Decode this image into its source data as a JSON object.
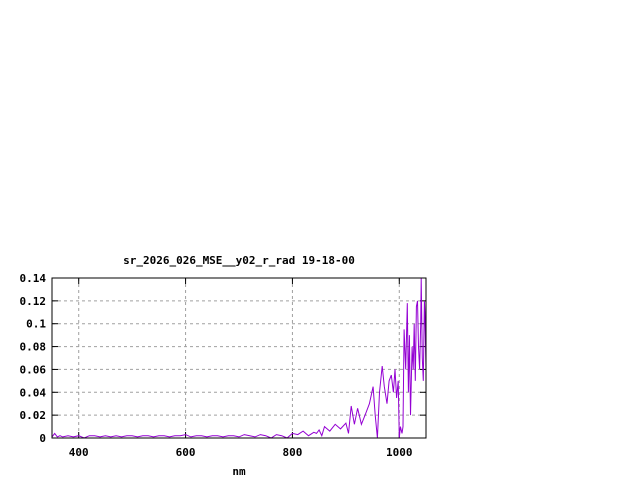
{
  "chart_data": {
    "type": "line",
    "title": "sr_2026_026_MSE__y02_r_rad 19-18-00",
    "xlabel": "nm",
    "ylabel": "",
    "xlim": [
      350,
      1050
    ],
    "ylim": [
      0,
      0.14
    ],
    "xticks": [
      400,
      600,
      800,
      1000
    ],
    "xtick_labels": [
      "400",
      "600",
      "800",
      "1000"
    ],
    "yticks": [
      0,
      0.02,
      0.04,
      0.06,
      0.08,
      0.1,
      0.12,
      0.14
    ],
    "ytick_labels": [
      "0",
      "0.02",
      "0.04",
      "0.06",
      "0.08",
      "0.1",
      "0.12",
      "0.14"
    ],
    "grid": true,
    "line_color": "#9400d3",
    "series": [
      {
        "x": [
          350,
          355,
          360,
          365,
          370,
          380,
          390,
          400,
          410,
          420,
          430,
          440,
          450,
          460,
          470,
          480,
          490,
          500,
          510,
          520,
          530,
          540,
          550,
          560,
          570,
          580,
          590,
          600,
          610,
          620,
          630,
          640,
          650,
          660,
          670,
          680,
          690,
          700,
          710,
          720,
          730,
          740,
          750,
          760,
          770,
          780,
          790,
          800,
          810,
          820,
          830,
          840,
          845,
          850,
          855,
          860,
          870,
          880,
          890,
          900,
          905,
          910,
          916,
          922,
          929,
          936,
          944,
          951,
          955,
          959,
          963,
          968,
          972,
          977,
          981,
          985,
          989,
          992,
          995,
          998,
          1000,
          1002,
          1005,
          1007,
          1009,
          1012,
          1015,
          1017,
          1019,
          1021,
          1024,
          1026,
          1028,
          1030,
          1032,
          1034,
          1036,
          1038,
          1040,
          1041,
          1043,
          1045,
          1047,
          1048,
          1050
        ],
        "y": [
          0.001,
          0.004,
          0.001,
          0.002,
          0.001,
          0.002,
          0.001,
          0.002,
          0.0,
          0.002,
          0.002,
          0.001,
          0.002,
          0.001,
          0.002,
          0.001,
          0.002,
          0.002,
          0.001,
          0.002,
          0.002,
          0.001,
          0.002,
          0.002,
          0.001,
          0.002,
          0.002,
          0.003,
          0.001,
          0.002,
          0.002,
          0.001,
          0.002,
          0.002,
          0.001,
          0.002,
          0.002,
          0.001,
          0.003,
          0.002,
          0.001,
          0.003,
          0.002,
          0.0,
          0.003,
          0.002,
          0.0,
          0.004,
          0.003,
          0.006,
          0.002,
          0.005,
          0.004,
          0.007,
          0.002,
          0.01,
          0.006,
          0.012,
          0.008,
          0.013,
          0.004,
          0.028,
          0.012,
          0.026,
          0.012,
          0.02,
          0.03,
          0.045,
          0.02,
          0.0,
          0.04,
          0.063,
          0.045,
          0.03,
          0.05,
          0.055,
          0.04,
          0.06,
          0.035,
          0.05,
          0.0,
          0.01,
          0.004,
          0.01,
          0.095,
          0.06,
          0.118,
          0.04,
          0.09,
          0.02,
          0.08,
          0.06,
          0.1,
          0.05,
          0.115,
          0.12,
          0.08,
          0.06,
          0.1,
          0.14,
          0.07,
          0.05,
          0.12,
          0.11,
          0.06
        ]
      }
    ]
  }
}
